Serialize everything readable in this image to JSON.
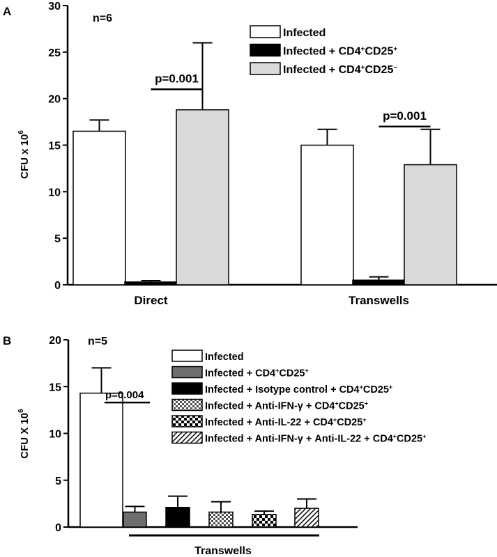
{
  "chart_data": [
    {
      "type": "bar",
      "panel_label": "A",
      "n_label": "n=6",
      "ylabel_base": "CFU x 10",
      "ylabel_exp": "6",
      "ylim": [
        0,
        30
      ],
      "yticks": [
        0,
        5,
        10,
        15,
        20,
        25,
        30
      ],
      "categories": [
        "Direct",
        "Transwells"
      ],
      "series": [
        {
          "name": "Infected",
          "fill": "#ffffff",
          "pattern": "solid",
          "values": [
            16.5,
            15.0
          ],
          "errors": [
            1.2,
            1.7
          ]
        },
        {
          "name": "Infected + CD4+CD25+",
          "fill": "#000000",
          "pattern": "solid",
          "values": [
            0.3,
            0.5
          ],
          "errors": [
            0.15,
            0.35
          ]
        },
        {
          "name": "Infected + CD4+CD25-",
          "fill": "#d9d9d9",
          "pattern": "solid",
          "values": [
            18.8,
            12.9
          ],
          "errors": [
            7.2,
            3.8
          ]
        }
      ],
      "legend_rich": [
        [
          {
            "t": "Infected"
          }
        ],
        [
          {
            "t": "Infected + CD4"
          },
          {
            "t": "+",
            "sup": true
          },
          {
            "t": "CD25"
          },
          {
            "t": "+",
            "sup": true
          }
        ],
        [
          {
            "t": "Infected + CD4"
          },
          {
            "t": "+",
            "sup": true
          },
          {
            "t": "CD25"
          },
          {
            "t": "−",
            "sup": true
          }
        ]
      ],
      "annotations": [
        {
          "text": "p=0.001",
          "category": 0,
          "from_series": 1,
          "to_series": 2,
          "y": 21.0
        },
        {
          "text": "p=0.001",
          "category": 1,
          "from_series": 1,
          "to_series": 2,
          "y": 17.0
        }
      ],
      "legend_position": "top-right"
    },
    {
      "type": "bar",
      "panel_label": "B",
      "n_label": "n=5",
      "ylabel_base": "CFU X 10",
      "ylabel_exp": "6",
      "ylim": [
        0,
        20
      ],
      "yticks": [
        0,
        5,
        10,
        15,
        20
      ],
      "group_label": "Transwells",
      "series": [
        {
          "name": "Infected",
          "fill": "#ffffff",
          "pattern": "solid",
          "value": 14.3,
          "error": 2.7
        },
        {
          "name": "Infected + CD4+CD25+",
          "fill": "#6e6e6e",
          "pattern": "solid",
          "value": 1.6,
          "error": 0.6
        },
        {
          "name": "Infected + Isotype control + CD4+CD25+",
          "fill": "#000000",
          "pattern": "solid",
          "value": 2.1,
          "error": 1.2
        },
        {
          "name": "Infected + Anti-IFN-γ + CD4+CD25+",
          "fill": "#ffffff",
          "pattern": "checker-fine",
          "value": 1.6,
          "error": 1.1
        },
        {
          "name": "Infected + Anti-IL-22 + CD4+CD25+",
          "fill": "#ffffff",
          "pattern": "checker-coarse",
          "value": 1.35,
          "error": 0.35
        },
        {
          "name": "Infected + Anti-IFN-γ + Anti-IL-22 + CD4+CD25+",
          "fill": "#ffffff",
          "pattern": "diagonal",
          "value": 2.0,
          "error": 1.0
        }
      ],
      "legend_rich": [
        [
          {
            "t": "Infected"
          }
        ],
        [
          {
            "t": "Infected + CD4"
          },
          {
            "t": "+",
            "sup": true
          },
          {
            "t": "CD25"
          },
          {
            "t": "+",
            "sup": true
          }
        ],
        [
          {
            "t": "Infected + Isotype control + CD4"
          },
          {
            "t": "+",
            "sup": true
          },
          {
            "t": "CD25"
          },
          {
            "t": "+",
            "sup": true
          }
        ],
        [
          {
            "t": "Infected + Anti-IFN-γ  + CD4"
          },
          {
            "t": "+",
            "sup": true
          },
          {
            "t": "CD25"
          },
          {
            "t": "+",
            "sup": true
          }
        ],
        [
          {
            "t": "Infected + Anti-IL-22  + CD4"
          },
          {
            "t": "+",
            "sup": true
          },
          {
            "t": "CD25"
          },
          {
            "t": "+",
            "sup": true
          }
        ],
        [
          {
            "t": "Infected + Anti-IFN-γ + Anti-IL-22 + CD4"
          },
          {
            "t": "+",
            "sup": true
          },
          {
            "t": "CD25"
          },
          {
            "t": "+",
            "sup": true
          }
        ]
      ],
      "annotations": [
        {
          "text": "p=0.004",
          "from_series": 0,
          "to_series": 1,
          "y": 13.3
        }
      ],
      "legend_position": "top-right"
    }
  ]
}
